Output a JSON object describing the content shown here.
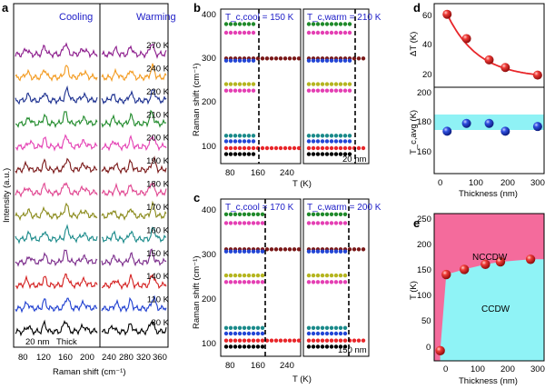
{
  "colors": {
    "sphere_red": "#e8262a",
    "sphere_blue": "#2346d6",
    "band_cyan": "#8ff2f5",
    "nccdw_pink": "#f46b9c",
    "ccdw_cyan": "#8ff3f6",
    "label_blue": "#2020c8",
    "dash_black": "#000000"
  },
  "chart_data": [
    {
      "panel": "a",
      "type": "line",
      "xlabel": "Raman shift (cm⁻¹)",
      "ylabel": "Intensity (a.u.)",
      "left_label": "Cooling",
      "right_label": "Warming",
      "left_xticks": [
        "80",
        "120",
        "160",
        "200"
      ],
      "right_xticks": [
        "240",
        "280",
        "320",
        "360"
      ],
      "bottom_left_label": "20 nm",
      "bottom_right_label": "Thick",
      "series": [
        {
          "name": "270 K",
          "color": "#8b1a8b"
        },
        {
          "name": "240 K",
          "color": "#f39a1e"
        },
        {
          "name": "220 K",
          "color": "#1b2f8f"
        },
        {
          "name": "210 K",
          "color": "#1f8a2a"
        },
        {
          "name": "200 K",
          "color": "#e43fb3"
        },
        {
          "name": "190 K",
          "color": "#7a1818"
        },
        {
          "name": "180 K",
          "color": "#e04590"
        },
        {
          "name": "170 K",
          "color": "#8a8a1a"
        },
        {
          "name": "160 K",
          "color": "#1a8a8a"
        },
        {
          "name": "150 K",
          "color": "#7a2a8a"
        },
        {
          "name": "140 K",
          "color": "#d42020"
        },
        {
          "name": "110 K",
          "color": "#1f3fd0"
        },
        {
          "name": "80 K",
          "color": "#000000"
        }
      ]
    },
    {
      "panel": "b",
      "type": "scatter",
      "ylabel": "Raman shift (cm⁻¹)",
      "xlabel": "T (K)",
      "left_title": "T_c,cool = 150 K",
      "right_title": "T_c,warm = 210 K",
      "corner_label": "20 nm",
      "ylim": [
        60,
        420
      ],
      "yticks": [
        "100",
        "200",
        "300",
        "400"
      ],
      "xticks": [
        "80",
        "160",
        "240"
      ],
      "dash_left_K": 150,
      "dash_right_K": 210
    },
    {
      "panel": "c",
      "type": "scatter",
      "ylabel": "Raman shift (cm⁻¹)",
      "xlabel": "T (K)",
      "left_title": "T_c,cool = 170 K",
      "right_title": "T_c,warm = 200 K",
      "corner_label": "150 nm",
      "ylim": [
        60,
        420
      ],
      "yticks": [
        "100",
        "200",
        "300",
        "400"
      ],
      "xticks": [
        "80",
        "160",
        "240"
      ],
      "dash_left_K": 170,
      "dash_right_K": 200
    },
    {
      "panel": "d",
      "type": "scatter",
      "xlabel": "Thickness (nm)",
      "xticks": [
        "0",
        "100",
        "200",
        "300"
      ],
      "top": {
        "ylabel": "ΔT (K)",
        "yticks": [
          "20",
          "40",
          "60"
        ],
        "ylim": [
          12,
          67
        ],
        "x": [
          20,
          80,
          150,
          200,
          300
        ],
        "y": [
          60,
          44,
          30,
          25,
          20
        ]
      },
      "bottom": {
        "ylabel": "T_c,avg (K)",
        "yticks": [
          "160",
          "180",
          "200"
        ],
        "ylim": [
          153,
          208
        ],
        "band": [
          176,
          190
        ],
        "x": [
          20,
          80,
          150,
          200,
          300
        ],
        "y": [
          180,
          185,
          185,
          180,
          183
        ]
      }
    },
    {
      "panel": "e",
      "type": "area",
      "xlabel": "Thickness (nm)",
      "ylabel": "T (K)",
      "xticks": [
        "0",
        "100",
        "200",
        "300"
      ],
      "yticks": [
        "0",
        "50",
        "100",
        "150",
        "200",
        "250"
      ],
      "xlim": [
        -20,
        345
      ],
      "ylim": [
        -20,
        270
      ],
      "regions": [
        "NCCDW",
        "CCDW"
      ],
      "x": [
        0,
        20,
        80,
        150,
        200,
        300
      ],
      "y": [
        0,
        150,
        160,
        170,
        175,
        180
      ]
    }
  ]
}
